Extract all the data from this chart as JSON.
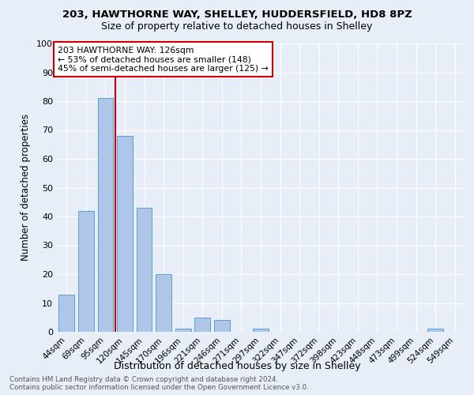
{
  "title1": "203, HAWTHORNE WAY, SHELLEY, HUDDERSFIELD, HD8 8PZ",
  "title2": "Size of property relative to detached houses in Shelley",
  "xlabel": "Distribution of detached houses by size in Shelley",
  "ylabel": "Number of detached properties",
  "footer": "Contains HM Land Registry data © Crown copyright and database right 2024.\nContains public sector information licensed under the Open Government Licence v3.0.",
  "categories": [
    "44sqm",
    "69sqm",
    "95sqm",
    "120sqm",
    "145sqm",
    "170sqm",
    "196sqm",
    "221sqm",
    "246sqm",
    "271sqm",
    "297sqm",
    "322sqm",
    "347sqm",
    "372sqm",
    "398sqm",
    "423sqm",
    "448sqm",
    "473sqm",
    "499sqm",
    "524sqm",
    "549sqm"
  ],
  "values": [
    13,
    42,
    81,
    68,
    43,
    20,
    1,
    5,
    4,
    0,
    1,
    0,
    0,
    0,
    0,
    0,
    0,
    0,
    0,
    1,
    0
  ],
  "bar_color": "#aec6e8",
  "bar_edge_color": "#5a9fd4",
  "vline_x": 2.5,
  "vline_color": "#cc0000",
  "annotation_text": "203 HAWTHORNE WAY: 126sqm\n← 53% of detached houses are smaller (148)\n45% of semi-detached houses are larger (125) →",
  "annotation_box_color": "#ffffff",
  "annotation_border_color": "#cc0000",
  "bg_color": "#e8eef8",
  "grid_color": "#ffffff",
  "ylim": [
    0,
    100
  ],
  "yticks": [
    0,
    10,
    20,
    30,
    40,
    50,
    60,
    70,
    80,
    90,
    100
  ]
}
